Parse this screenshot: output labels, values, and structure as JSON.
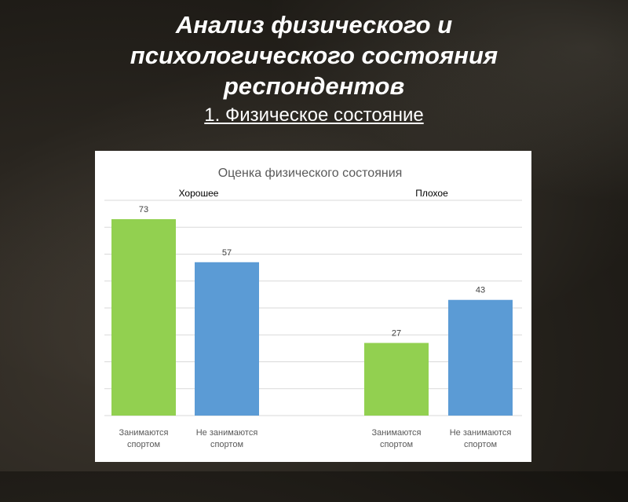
{
  "slide": {
    "title_lines": [
      "Анализ физического и",
      "психологического состояния",
      "респондентов"
    ],
    "subtitle": "1. Физическое состояние"
  },
  "colors": {
    "green": "#92d050",
    "blue": "#5b9bd5",
    "text": "#595959",
    "grid": "#d9d9d9"
  },
  "chart_data": {
    "type": "bar",
    "title": "Оценка физического состояния",
    "groups": [
      {
        "name": "Хорошее",
        "bars": [
          {
            "category_lines": [
              "Занимаются",
              "спортом"
            ],
            "value": 73,
            "color": "#92d050"
          },
          {
            "category_lines": [
              "Не занимаются",
              "спортом"
            ],
            "value": 57,
            "color": "#5b9bd5"
          }
        ]
      },
      {
        "name": "Плохое",
        "bars": [
          {
            "category_lines": [
              "Занимаются",
              "спортом"
            ],
            "value": 27,
            "color": "#92d050"
          },
          {
            "category_lines": [
              "Не занимаются",
              "спортом"
            ],
            "value": 43,
            "color": "#5b9bd5"
          }
        ]
      }
    ],
    "ylim": [
      0,
      80
    ],
    "grid": true,
    "legend": "none"
  }
}
